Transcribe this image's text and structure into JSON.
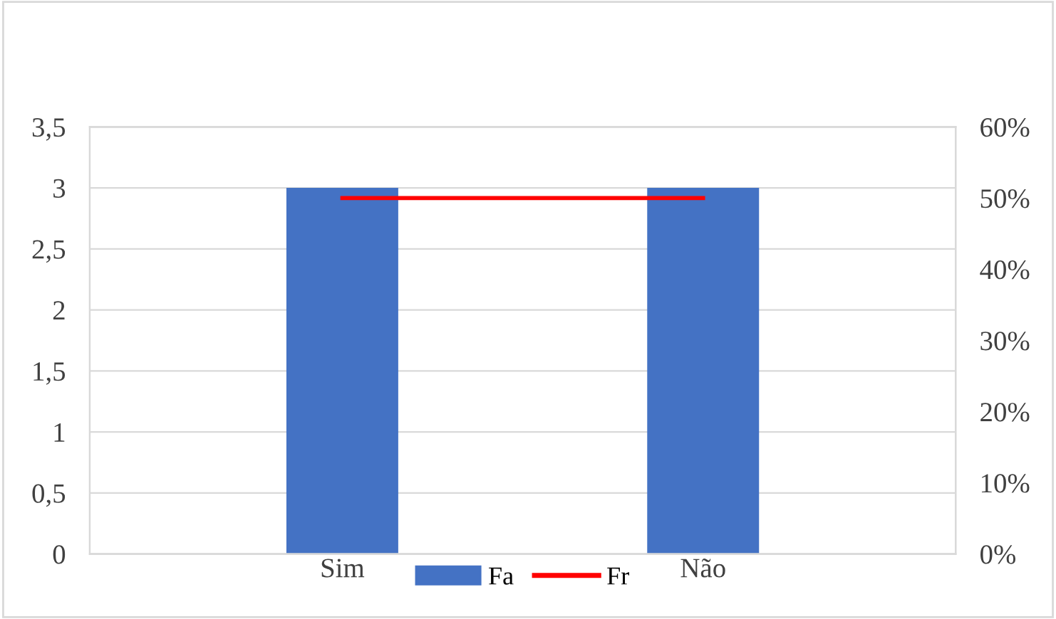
{
  "chart_data": {
    "type": "bar",
    "categories": [
      "Sim",
      "Não"
    ],
    "series": [
      {
        "name": "Fa",
        "color": "#4472c4",
        "values": [
          3,
          3
        ]
      },
      {
        "name": "Fr",
        "type": "line",
        "color": "#ff0000",
        "axis": "y2",
        "values": [
          50,
          50
        ]
      }
    ],
    "ylim": [
      0,
      3.5
    ],
    "yticks": [
      0,
      {
        "value": 0.5,
        "label": "0,5"
      },
      1,
      {
        "value": 1.5,
        "label": "1,5"
      },
      2,
      {
        "value": 2.5,
        "label": "2,5"
      },
      3,
      {
        "value": 3.5,
        "label": "3,5"
      }
    ],
    "y2lim": [
      0,
      60
    ],
    "y2ticks": [
      {
        "value": 0,
        "label": "0%"
      },
      {
        "value": 10,
        "label": "10%"
      },
      {
        "value": 20,
        "label": "20%"
      },
      {
        "value": 30,
        "label": "30%"
      },
      {
        "value": 40,
        "label": "40%"
      },
      {
        "value": 50,
        "label": "50%"
      },
      {
        "value": 60,
        "label": "60%"
      }
    ],
    "grid": "y",
    "legend": "bottom",
    "marker": "none",
    "line_style": "solid"
  }
}
